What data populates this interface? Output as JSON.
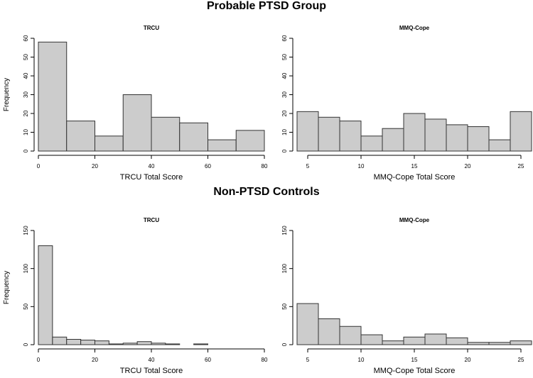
{
  "groups": [
    {
      "title": "Probable PTSD Group"
    },
    {
      "title": "Non-PTSD Controls"
    }
  ],
  "chart_data": [
    {
      "type": "bar",
      "title": "TRCU",
      "group": "Probable PTSD Group",
      "xlabel": "TRCU Total Score",
      "ylabel": "Frequency",
      "bin_edges": [
        0,
        10,
        20,
        30,
        40,
        50,
        60,
        70,
        80
      ],
      "values": [
        58,
        16,
        8,
        30,
        18,
        15,
        6,
        11
      ],
      "xlim": [
        0,
        80
      ],
      "ylim": [
        0,
        60
      ],
      "xticks": [
        0,
        20,
        40,
        60,
        80
      ],
      "yticks": [
        0,
        10,
        20,
        30,
        40,
        50,
        60
      ],
      "bar_color": "#cccccc"
    },
    {
      "type": "bar",
      "title": "MMQ-Cope",
      "group": "Probable PTSD Group",
      "xlabel": "MMQ-Cope Total Score",
      "ylabel": "",
      "bin_edges": [
        4,
        6,
        8,
        10,
        12,
        14,
        16,
        18,
        20,
        22,
        24,
        26
      ],
      "values": [
        21,
        18,
        16,
        8,
        12,
        20,
        17,
        14,
        13,
        6,
        21
      ],
      "xlim": [
        4,
        26
      ],
      "ylim": [
        0,
        60
      ],
      "xticks": [
        5,
        10,
        15,
        20,
        25
      ],
      "yticks": [
        0,
        10,
        20,
        30,
        40,
        50,
        60
      ],
      "bar_color": "#cccccc"
    },
    {
      "type": "bar",
      "title": "TRCU",
      "group": "Non-PTSD Controls",
      "xlabel": "TRCU Total Score",
      "ylabel": "Frequency",
      "bin_edges": [
        0,
        5,
        10,
        15,
        20,
        25,
        30,
        35,
        40,
        45,
        50,
        55,
        60
      ],
      "values": [
        130,
        10,
        7,
        6,
        5,
        1,
        2,
        4,
        2,
        1,
        0,
        1
      ],
      "xlim": [
        0,
        80
      ],
      "ylim": [
        0,
        150
      ],
      "xticks": [
        0,
        20,
        40,
        60,
        80
      ],
      "yticks": [
        0,
        50,
        100,
        150
      ],
      "bar_color": "#cccccc"
    },
    {
      "type": "bar",
      "title": "MMQ-Cope",
      "group": "Non-PTSD Controls",
      "xlabel": "MMQ-Cope Total Score",
      "ylabel": "",
      "bin_edges": [
        4,
        6,
        8,
        10,
        12,
        14,
        16,
        18,
        20,
        22,
        24,
        26
      ],
      "values": [
        54,
        34,
        24,
        13,
        5,
        10,
        14,
        9,
        3,
        3,
        5
      ],
      "xlim": [
        4,
        26
      ],
      "ylim": [
        0,
        150
      ],
      "xticks": [
        5,
        10,
        15,
        20,
        25
      ],
      "yticks": [
        0,
        50,
        100,
        150
      ],
      "bar_color": "#cccccc"
    }
  ]
}
